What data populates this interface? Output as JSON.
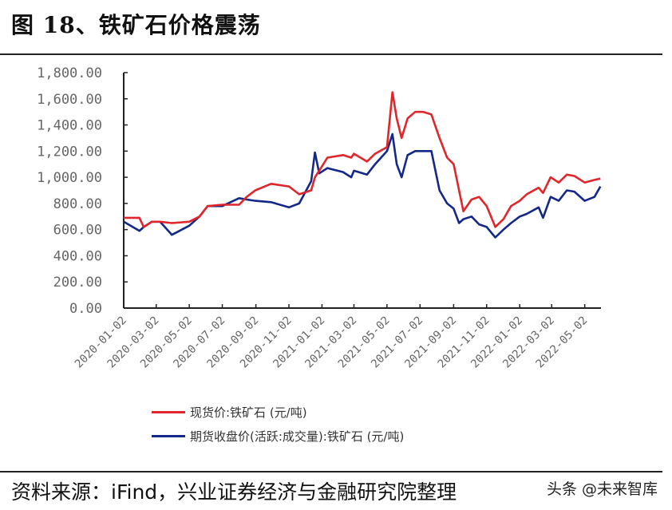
{
  "title": "图 18、铁矿石价格震荡",
  "footer": {
    "source": "资料来源：iFind，兴业证券经济与金融研究院整理",
    "watermark": "头条 @未来智库"
  },
  "chart_data": {
    "type": "line",
    "title": "图 18、铁矿石价格震荡",
    "ylim": [
      0,
      1800
    ],
    "yticks": [
      "0.00",
      "200.00",
      "400.00",
      "600.00",
      "800.00",
      "1,000.00",
      "1,200.00",
      "1,400.00",
      "1,600.00",
      "1,800.00"
    ],
    "xticks": [
      "2020-01-02",
      "2020-03-02",
      "2020-05-02",
      "2020-07-02",
      "2020-09-02",
      "2020-11-02",
      "2021-01-02",
      "2021-03-02",
      "2021-05-02",
      "2021-07-02",
      "2021-09-02",
      "2021-11-02",
      "2022-01-02",
      "2022-03-02",
      "2022-05-02"
    ],
    "xlim": [
      "2020-01-02",
      "2022-06-01"
    ],
    "grid": false,
    "legend_placement": "bottom",
    "x": [
      "2020-01-02",
      "2020-01-31",
      "2020-02-08",
      "2020-02-23",
      "2020-03-09",
      "2020-03-31",
      "2020-05-02",
      "2020-05-21",
      "2020-06-05",
      "2020-07-02",
      "2020-08-02",
      "2020-08-16",
      "2020-09-01",
      "2020-09-30",
      "2020-11-02",
      "2020-11-21",
      "2020-12-13",
      "2020-12-20",
      "2020-12-28",
      "2021-01-12",
      "2021-02-10",
      "2021-02-25",
      "2021-03-02",
      "2021-03-26",
      "2021-04-10",
      "2021-05-02",
      "2021-05-12",
      "2021-05-20",
      "2021-05-29",
      "2021-06-09",
      "2021-06-23",
      "2021-07-08",
      "2021-07-23",
      "2021-08-07",
      "2021-08-21",
      "2021-09-02",
      "2021-09-12",
      "2021-09-20",
      "2021-10-05",
      "2021-10-19",
      "2021-11-02",
      "2021-11-18",
      "2021-12-03",
      "2021-12-17",
      "2022-01-02",
      "2022-01-15",
      "2022-02-06",
      "2022-02-14",
      "2022-02-28",
      "2022-03-15",
      "2022-03-30",
      "2022-04-13",
      "2022-05-02",
      "2022-05-20",
      "2022-05-31"
    ],
    "series": [
      {
        "name": "现货价:铁矿石 (元/吨)",
        "color": "#e0262a",
        "values": [
          690,
          690,
          620,
          660,
          660,
          650,
          660,
          700,
          780,
          790,
          790,
          850,
          900,
          950,
          930,
          870,
          900,
          1000,
          1050,
          1150,
          1170,
          1150,
          1180,
          1120,
          1180,
          1230,
          1650,
          1450,
          1300,
          1450,
          1500,
          1500,
          1480,
          1300,
          1150,
          1100,
          900,
          740,
          830,
          850,
          780,
          620,
          680,
          780,
          820,
          870,
          920,
          880,
          1000,
          960,
          1020,
          1010,
          960,
          980,
          990
        ]
      },
      {
        "name": "期货收盘价(活跃:成交量):铁矿石 (元/吨)",
        "color": "#13288a",
        "values": [
          660,
          590,
          620,
          660,
          660,
          560,
          630,
          700,
          780,
          780,
          840,
          830,
          820,
          810,
          770,
          800,
          970,
          1190,
          1030,
          1070,
          1040,
          1000,
          1050,
          1020,
          1100,
          1200,
          1330,
          1100,
          1000,
          1170,
          1200,
          1200,
          1200,
          900,
          800,
          760,
          650,
          680,
          700,
          640,
          620,
          540,
          600,
          650,
          700,
          720,
          770,
          690,
          850,
          820,
          900,
          890,
          820,
          850,
          930
        ]
      }
    ]
  }
}
